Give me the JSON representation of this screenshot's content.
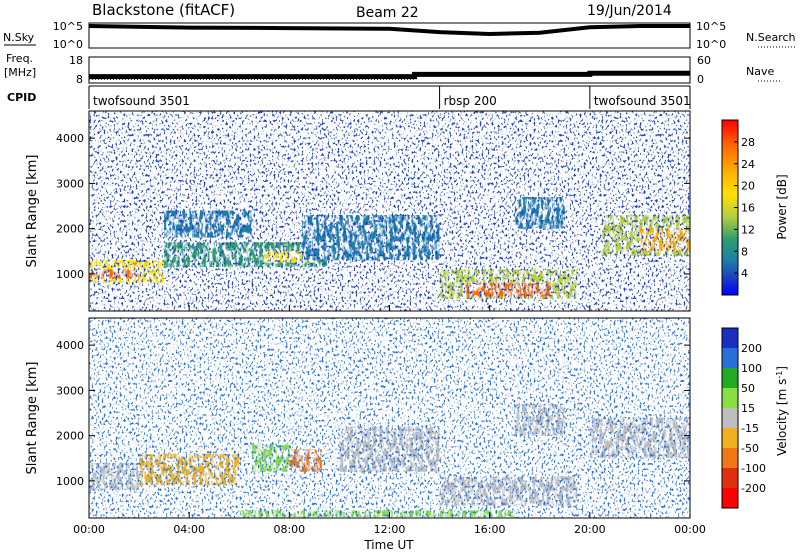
{
  "header": {
    "station": "Blackstone (fitACF)",
    "beam": "Beam 22",
    "date": "19/Jun/2014"
  },
  "noise_panel": {
    "left_label": "N.Sky",
    "left_ticks": [
      "10^5",
      "10^0"
    ],
    "right_ticks": [
      "10^5",
      "10^0"
    ],
    "right_label": "N.Search"
  },
  "freq_panel": {
    "left_label_line1": "Freq.",
    "left_label_line2": "[MHz]",
    "left_ticks": [
      "18",
      "8"
    ],
    "right_ticks": [
      "60",
      "0"
    ],
    "right_label": "Nave"
  },
  "cpid_panel": {
    "label": "CPID",
    "segments": [
      {
        "label": "twofsound 3501",
        "start_hour": 0,
        "end_hour": 14
      },
      {
        "label": "rbsp 200",
        "start_hour": 14,
        "end_hour": 20
      },
      {
        "label": "twofsound 3501",
        "start_hour": 20,
        "end_hour": 24
      }
    ]
  },
  "power_panel": {
    "ylabel": "Slant Range [km]",
    "yticks": [
      "4000",
      "3000",
      "2000",
      "1000"
    ],
    "colorbar_label": "Power [dB]",
    "colorbar_ticks": [
      "28",
      "24",
      "20",
      "16",
      "12",
      "8",
      "4"
    ]
  },
  "velocity_panel": {
    "ylabel": "Slant Range [km]",
    "yticks": [
      "4000",
      "3000",
      "2000",
      "1000"
    ],
    "colorbar_label": "Velocity [m s^-1]",
    "colorbar_ticks": [
      "200",
      "100",
      "50",
      "15",
      "-15",
      "-50",
      "-100",
      "-200"
    ]
  },
  "xaxis": {
    "ticks": [
      "00:00",
      "04:00",
      "08:00",
      "12:00",
      "16:00",
      "20:00",
      "00:00"
    ],
    "label": "Time UT"
  },
  "colors": {
    "power_scale": [
      "#ff0000",
      "#ff6a00",
      "#ffb000",
      "#ffe000",
      "#b8d040",
      "#2e9e6a",
      "#1e7fa6",
      "#1a3fbf",
      "#0000ff"
    ],
    "velocity_scale": [
      "#1a2fbf",
      "#2a6fd8",
      "#22aa22",
      "#88dd44",
      "#bebebe",
      "#f0b020",
      "#f07818",
      "#e03010",
      "#ff0000"
    ],
    "ground_scatter": "#bebebe"
  },
  "chart_data": [
    {
      "type": "line",
      "title": "",
      "description_key": "noise",
      "x_unit": "hour UT",
      "xlim": [
        0,
        24
      ],
      "scale": "log",
      "series": [
        {
          "name": "N.Sky",
          "x": [
            0,
            4,
            8,
            12,
            14,
            16,
            18,
            20,
            22,
            24
          ],
          "y": [
            100000,
            40000,
            30000,
            20000,
            3000,
            1000,
            2000,
            50000,
            100000,
            100000
          ]
        }
      ]
    },
    {
      "type": "line",
      "title": "",
      "description_key": "frequency",
      "x_unit": "hour UT",
      "xlim": [
        0,
        24
      ],
      "ylim": [
        8,
        18
      ],
      "series": [
        {
          "name": "Freq.",
          "x": [
            0,
            13,
            13,
            20,
            20,
            24
          ],
          "y": [
            10,
            10,
            11,
            11,
            11.5,
            11.5
          ]
        },
        {
          "name": "Nave",
          "x": [
            0,
            13,
            13,
            24
          ],
          "y": [
            5,
            5,
            20,
            20
          ]
        }
      ]
    },
    {
      "type": "heatmap",
      "title": "",
      "xlabel": "Time UT",
      "ylabel": "Slant Range [km]",
      "colorbar": "Power [dB]",
      "xlim": [
        0,
        24
      ],
      "ylim": [
        180,
        4600
      ],
      "clim": [
        0,
        30
      ],
      "regions": [
        {
          "t0": 0.0,
          "t1": 3.0,
          "r0": 800,
          "r1": 1300,
          "value": 20
        },
        {
          "t0": 0.0,
          "t1": 2.0,
          "r0": 900,
          "r1": 1100,
          "value": 26
        },
        {
          "t0": 3.0,
          "t1": 9.5,
          "r0": 1150,
          "r1": 1700,
          "value": 12
        },
        {
          "t0": 7.0,
          "t1": 9.0,
          "r0": 1250,
          "r1": 1500,
          "value": 18
        },
        {
          "t0": 3.0,
          "t1": 6.5,
          "r0": 1800,
          "r1": 2400,
          "value": 6
        },
        {
          "t0": 8.5,
          "t1": 14.0,
          "r0": 1300,
          "r1": 2300,
          "value": 6
        },
        {
          "t0": 14.0,
          "t1": 19.5,
          "r0": 450,
          "r1": 1100,
          "value": 14
        },
        {
          "t0": 15.0,
          "t1": 18.5,
          "r0": 500,
          "r1": 800,
          "value": 28
        },
        {
          "t0": 17.0,
          "t1": 19.0,
          "r0": 2000,
          "r1": 2700,
          "value": 6
        },
        {
          "t0": 20.5,
          "t1": 24.0,
          "r0": 1400,
          "r1": 2300,
          "value": 14
        },
        {
          "t0": 22.0,
          "t1": 24.0,
          "r0": 1500,
          "r1": 2000,
          "value": 24
        }
      ]
    },
    {
      "type": "heatmap",
      "title": "",
      "xlabel": "Time UT",
      "ylabel": "Slant Range [km]",
      "colorbar": "Velocity [m s^-1]",
      "xlim": [
        0,
        24
      ],
      "ylim": [
        180,
        4600
      ],
      "clim": [
        -200,
        200
      ],
      "regions": [
        {
          "t0": 0.0,
          "t1": 2.0,
          "r0": 800,
          "r1": 1400,
          "value": 0,
          "ground_scatter": true
        },
        {
          "t0": 2.0,
          "t1": 6.0,
          "r0": 900,
          "r1": 1600,
          "value": -50
        },
        {
          "t0": 6.5,
          "t1": 8.0,
          "r0": 1200,
          "r1": 1800,
          "value": 40
        },
        {
          "t0": 8.0,
          "t1": 9.3,
          "r0": 1200,
          "r1": 1700,
          "value": -70
        },
        {
          "t0": 10.0,
          "t1": 14.0,
          "r0": 1200,
          "r1": 2200,
          "value": 0,
          "ground_scatter": true
        },
        {
          "t0": 14.0,
          "t1": 19.5,
          "r0": 450,
          "r1": 1100,
          "value": 0,
          "ground_scatter": true
        },
        {
          "t0": 6.0,
          "t1": 17.0,
          "r0": 200,
          "r1": 350,
          "value": 40
        },
        {
          "t0": 17.0,
          "t1": 19.0,
          "r0": 2000,
          "r1": 2700,
          "value": 0,
          "ground_scatter": true
        },
        {
          "t0": 20.0,
          "t1": 24.0,
          "r0": 1500,
          "r1": 2400,
          "value": 0,
          "ground_scatter": true
        }
      ]
    }
  ]
}
